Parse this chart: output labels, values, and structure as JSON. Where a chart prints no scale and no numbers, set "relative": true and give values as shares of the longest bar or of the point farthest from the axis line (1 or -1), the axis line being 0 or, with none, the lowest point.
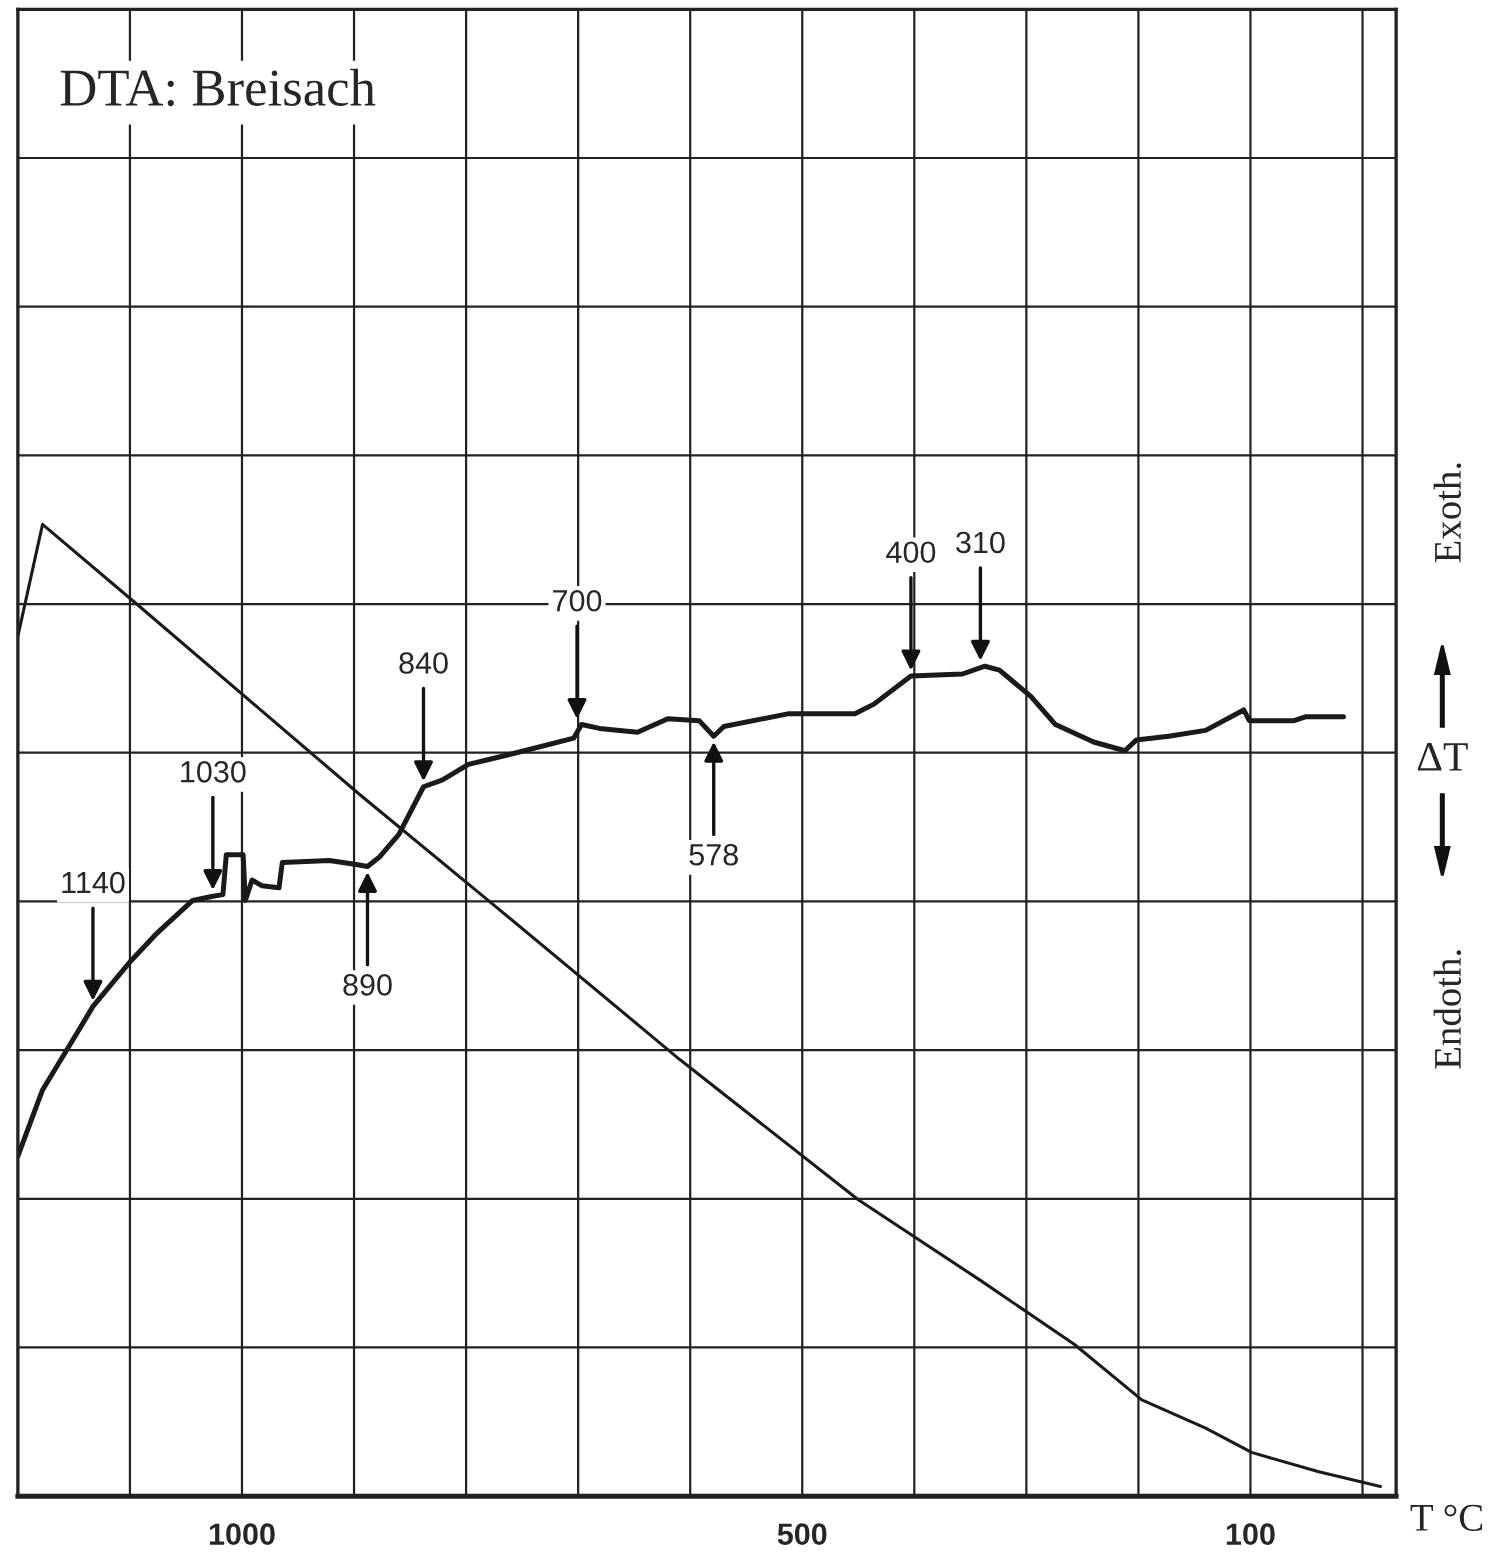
{
  "chart_data": {
    "type": "line",
    "title": "DTA: Breisach",
    "xlabel": "T °C",
    "relative": true,
    "tick_labels": "x",
    "grid": true,
    "legend": false,
    "marker": "none",
    "line_style": "solid",
    "xlim": [
      1200,
      -30
    ],
    "xticks": [
      {
        "value": 1200,
        "label": null
      },
      {
        "value": 1100,
        "label": null
      },
      1000,
      {
        "value": 900,
        "label": null
      },
      {
        "value": 800,
        "label": null
      },
      {
        "value": 700,
        "label": null
      },
      {
        "value": 600,
        "label": null
      },
      500,
      {
        "value": 400,
        "label": null
      },
      {
        "value": 300,
        "label": null
      },
      {
        "value": 200,
        "label": null
      },
      100,
      {
        "value": 0,
        "label": null
      }
    ],
    "series": [
      {
        "color": "#1a1a1a",
        "x": [
          1200,
          1178,
          1148,
          1133,
          1099,
          1077,
          1044,
          1027,
          1017,
          1014,
          999,
          997,
          991,
          982,
          967,
          964,
          922,
          898,
          888,
          877,
          860,
          838,
          821,
          798,
          776,
          748,
          704,
          697,
          681,
          647,
          620,
          592,
          579,
          570,
          513,
          453,
          436,
          403,
          357,
          337,
          324,
          296,
          274,
          240,
          212,
          202,
          173,
          140,
          106,
          101,
          61,
          51,
          17
        ],
        "values": [
          0.35,
          0.418,
          0.475,
          0.504,
          0.551,
          0.578,
          0.613,
          0.617,
          0.619,
          0.66,
          0.66,
          0.613,
          0.634,
          0.628,
          0.626,
          0.652,
          0.654,
          0.65,
          0.648,
          0.658,
          0.681,
          0.73,
          0.737,
          0.753,
          0.759,
          0.767,
          0.78,
          0.794,
          0.79,
          0.786,
          0.8,
          0.798,
          0.782,
          0.792,
          0.805,
          0.805,
          0.815,
          0.844,
          0.846,
          0.854,
          0.85,
          0.823,
          0.794,
          0.776,
          0.767,
          0.778,
          0.782,
          0.788,
          0.809,
          0.798,
          0.798,
          0.802,
          0.802
        ]
      },
      {
        "color": "#1a1a1a",
        "x": [
          1200,
          1178,
          1094,
          895,
          776,
          609,
          450,
          341,
          257,
          197,
          140,
          99,
          39,
          -16
        ],
        "values": [
          0.885,
          1.0,
          0.918,
          0.722,
          0.609,
          0.449,
          0.305,
          0.222,
          0.156,
          0.099,
          0.07,
          0.045,
          0.025,
          0.01
        ]
      }
    ],
    "annotations": [
      {
        "text": "1140",
        "x": 1133,
        "y": 0.504
      },
      {
        "text": "1030",
        "x": 1026,
        "y": 0.618
      },
      {
        "text": "890",
        "x": 888,
        "y": 0.648
      },
      {
        "text": "840",
        "x": 838,
        "y": 0.73
      },
      {
        "text": "700",
        "x": 701,
        "y": 0.794
      },
      {
        "text": "578",
        "x": 579,
        "y": 0.782
      },
      {
        "text": "400",
        "x": 403,
        "y": 0.844
      },
      {
        "text": "310",
        "x": 341,
        "y": 0.854
      },
      "Exoth.",
      "ΔT",
      "Endoth."
    ]
  }
}
